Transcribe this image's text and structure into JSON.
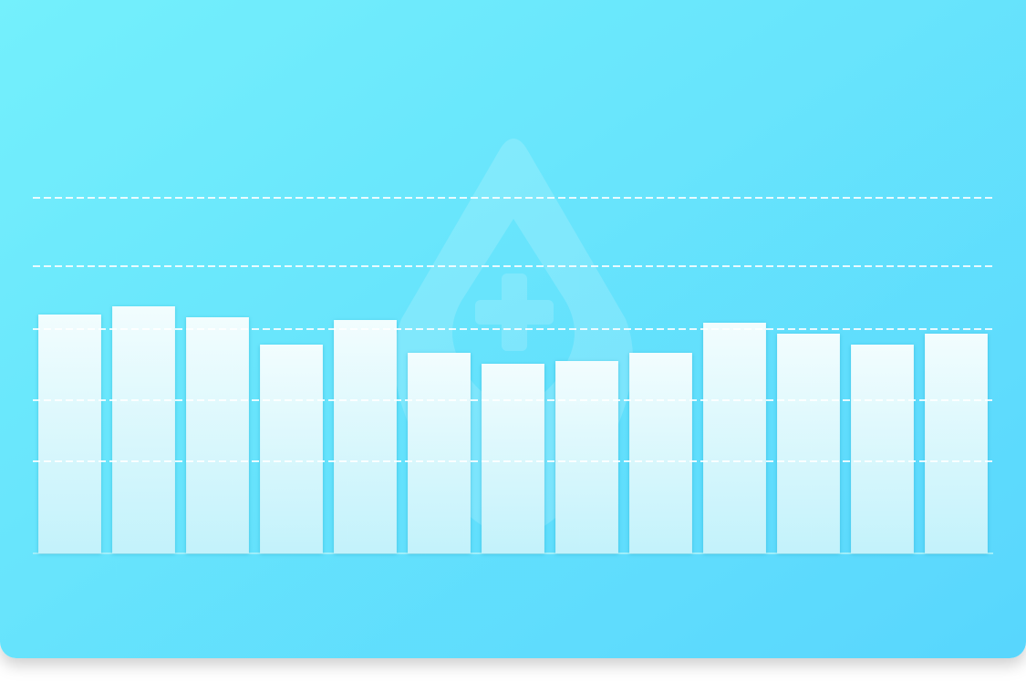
{
  "chart_data": {
    "type": "bar",
    "categories": [
      null,
      null,
      null,
      null,
      null,
      null,
      null,
      null,
      null,
      null,
      null,
      null,
      null
    ],
    "values": [
      262,
      271,
      259,
      229,
      256,
      220,
      208,
      211,
      220,
      253,
      241,
      229,
      241
    ],
    "color": "#ffffff",
    "ylim": [
      0,
      390
    ],
    "yticks": [
      101,
      168,
      246,
      315,
      390
    ],
    "grid": true
  }
}
